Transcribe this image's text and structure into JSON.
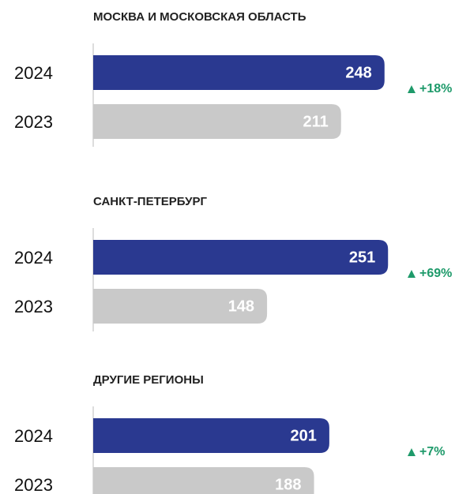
{
  "chart_data": [
    {
      "type": "bar",
      "title": "МОСКВА И МОСКОВСКАЯ ОБЛАСТЬ",
      "categories": [
        "2024",
        "2023"
      ],
      "values": [
        248,
        211
      ],
      "colors": [
        "#2a3990",
        "#c9c9c9"
      ],
      "annotation": "+18%"
    },
    {
      "type": "bar",
      "title": "САНКТ-ПЕТЕРБУРГ",
      "categories": [
        "2024",
        "2023"
      ],
      "values": [
        251,
        148
      ],
      "colors": [
        "#2a3990",
        "#c9c9c9"
      ],
      "annotation": "+69%"
    },
    {
      "type": "bar",
      "title": "ДРУГИЕ РЕГИОНЫ",
      "categories": [
        "2024",
        "2023"
      ],
      "values": [
        201,
        188
      ],
      "colors": [
        "#2a3990",
        "#c9c9c9"
      ],
      "annotation": "+7%"
    }
  ]
}
